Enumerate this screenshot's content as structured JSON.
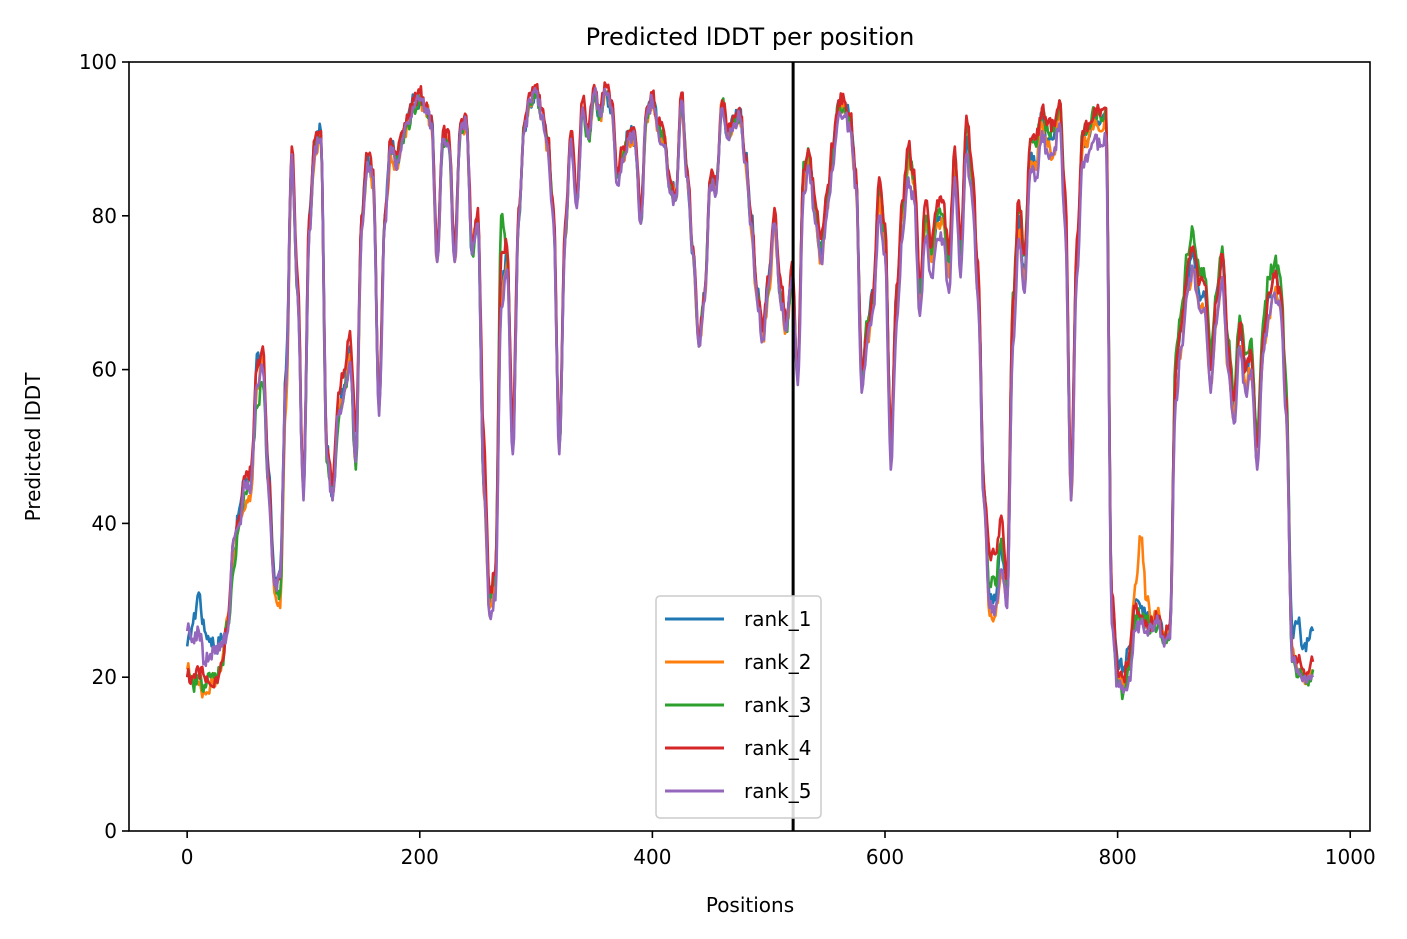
{
  "chart_data": {
    "type": "line",
    "title": "Predicted lDDT per position",
    "xlabel": "Positions",
    "ylabel": "Predicted lDDT",
    "xlim": [
      -50,
      1017
    ],
    "ylim": [
      0,
      100
    ],
    "xticks": [
      0,
      200,
      400,
      600,
      800,
      1000
    ],
    "yticks": [
      0,
      20,
      40,
      60,
      80,
      100
    ],
    "vline_x": 521,
    "legend_position": "lower center",
    "x_range": [
      0,
      968
    ],
    "anchors_x": [
      0,
      5,
      10,
      15,
      20,
      25,
      30,
      35,
      40,
      45,
      50,
      55,
      60,
      65,
      70,
      75,
      80,
      85,
      90,
      95,
      100,
      105,
      110,
      115,
      120,
      125,
      130,
      135,
      140,
      145,
      150,
      155,
      160,
      165,
      170,
      175,
      180,
      185,
      190,
      195,
      200,
      205,
      210,
      215,
      220,
      225,
      230,
      235,
      240,
      245,
      250,
      255,
      260,
      265,
      270,
      275,
      280,
      285,
      290,
      295,
      300,
      305,
      310,
      315,
      320,
      325,
      330,
      335,
      340,
      345,
      350,
      355,
      360,
      365,
      370,
      375,
      380,
      385,
      390,
      395,
      400,
      405,
      410,
      415,
      420,
      425,
      430,
      435,
      440,
      445,
      450,
      455,
      460,
      465,
      470,
      475,
      480,
      485,
      490,
      495,
      500,
      505,
      510,
      515,
      520,
      525,
      530,
      535,
      540,
      545,
      550,
      555,
      560,
      565,
      570,
      575,
      580,
      585,
      590,
      595,
      600,
      605,
      610,
      615,
      620,
      625,
      630,
      635,
      640,
      645,
      650,
      655,
      660,
      665,
      670,
      675,
      680,
      685,
      690,
      695,
      700,
      705,
      710,
      715,
      720,
      725,
      730,
      735,
      740,
      745,
      750,
      755,
      760,
      765,
      770,
      775,
      780,
      785,
      790,
      795,
      800,
      805,
      810,
      815,
      820,
      825,
      830,
      835,
      840,
      845,
      850,
      855,
      860,
      865,
      870,
      875,
      880,
      885,
      890,
      895,
      900,
      905,
      910,
      915,
      920,
      925,
      930,
      935,
      940,
      945,
      950,
      955,
      960,
      965,
      968
    ],
    "series": [
      {
        "name": "rank_1",
        "color": "#1f77b4",
        "values": [
          24,
          27,
          31,
          26,
          25,
          24,
          25,
          27,
          36,
          42,
          46,
          44,
          62,
          60,
          47,
          33,
          34,
          60,
          88,
          70,
          44,
          80,
          90,
          91,
          50,
          44,
          55,
          58,
          63,
          48,
          80,
          88,
          85,
          55,
          80,
          90,
          87,
          90,
          93,
          95,
          95,
          94,
          93,
          75,
          90,
          90,
          75,
          92,
          92,
          75,
          80,
          45,
          30,
          33,
          70,
          75,
          50,
          80,
          91,
          95,
          96,
          93,
          90,
          80,
          50,
          78,
          90,
          82,
          94,
          90,
          96,
          93,
          96,
          94,
          85,
          88,
          91,
          90,
          80,
          93,
          95,
          92,
          90,
          84,
          83,
          95,
          85,
          75,
          64,
          70,
          85,
          84,
          95,
          90,
          93,
          94,
          88,
          80,
          70,
          65,
          72,
          80,
          70,
          66,
          73,
          60,
          85,
          88,
          80,
          75,
          82,
          88,
          95,
          94,
          93,
          85,
          60,
          66,
          70,
          83,
          78,
          50,
          70,
          80,
          88,
          85,
          70,
          80,
          75,
          80,
          80,
          73,
          88,
          75,
          90,
          85,
          72,
          45,
          30,
          30,
          37,
          30,
          65,
          80,
          72,
          88,
          87,
          93,
          90,
          90,
          95,
          80,
          45,
          75,
          90,
          90,
          93,
          92,
          93,
          30,
          22,
          21,
          24,
          30,
          29,
          28,
          27,
          28,
          25,
          27,
          60,
          65,
          72,
          75,
          70,
          70,
          60,
          70,
          75,
          62,
          55,
          65,
          60,
          62,
          50,
          64,
          70,
          72,
          70,
          56,
          26,
          27,
          24,
          25,
          26
        ]
      },
      {
        "name": "rank_2",
        "color": "#ff7f0e",
        "values": [
          21,
          20,
          19,
          18,
          19,
          20,
          22,
          28,
          36,
          40,
          42,
          44,
          58,
          62,
          45,
          31,
          29,
          55,
          87,
          70,
          44,
          78,
          88,
          90,
          48,
          44,
          54,
          57,
          62,
          48,
          78,
          86,
          84,
          55,
          79,
          88,
          86,
          90,
          92,
          94,
          95,
          94,
          92,
          74,
          90,
          89,
          74,
          91,
          92,
          76,
          80,
          44,
          29,
          32,
          69,
          74,
          50,
          80,
          92,
          95,
          96,
          93,
          89,
          80,
          50,
          77,
          90,
          82,
          94,
          90,
          96,
          93,
          96,
          94,
          85,
          88,
          90,
          90,
          79,
          93,
          95,
          91,
          90,
          84,
          82,
          95,
          85,
          75,
          63,
          69,
          84,
          84,
          95,
          90,
          92,
          93,
          87,
          78,
          69,
          64,
          70,
          79,
          69,
          65,
          72,
          59,
          84,
          87,
          80,
          74,
          81,
          87,
          94,
          94,
          92,
          84,
          58,
          64,
          68,
          82,
          76,
          49,
          69,
          80,
          87,
          84,
          69,
          79,
          74,
          79,
          79,
          72,
          87,
          74,
          88,
          83,
          70,
          43,
          28,
          28,
          34,
          30,
          65,
          78,
          71,
          87,
          86,
          92,
          89,
          88,
          94,
          79,
          43,
          74,
          89,
          90,
          92,
          91,
          92,
          28,
          20,
          19,
          22,
          32,
          38,
          30,
          27,
          29,
          25,
          26,
          57,
          63,
          70,
          73,
          68,
          68,
          58,
          66,
          72,
          60,
          54,
          63,
          58,
          60,
          48,
          62,
          67,
          70,
          68,
          54,
          24,
          21,
          20,
          20,
          21
        ]
      },
      {
        "name": "rank_3",
        "color": "#2ca02c",
        "values": [
          20,
          19,
          20,
          19,
          20,
          20,
          22,
          27,
          34,
          40,
          44,
          46,
          55,
          58,
          45,
          32,
          31,
          58,
          88,
          70,
          44,
          78,
          89,
          90,
          48,
          43,
          53,
          57,
          61,
          47,
          79,
          87,
          85,
          55,
          80,
          89,
          87,
          90,
          92,
          94,
          95,
          94,
          92,
          75,
          90,
          89,
          75,
          91,
          92,
          75,
          80,
          45,
          31,
          33,
          80,
          75,
          50,
          79,
          92,
          95,
          96,
          93,
          90,
          80,
          50,
          77,
          90,
          82,
          94,
          90,
          96,
          93,
          96,
          94,
          85,
          88,
          91,
          90,
          79,
          93,
          95,
          92,
          90,
          84,
          82,
          95,
          86,
          75,
          63,
          70,
          84,
          84,
          95,
          90,
          92,
          93,
          88,
          79,
          70,
          65,
          71,
          80,
          70,
          65,
          72,
          59,
          87,
          88,
          81,
          76,
          82,
          88,
          94,
          94,
          93,
          85,
          59,
          66,
          70,
          84,
          78,
          50,
          69,
          81,
          88,
          85,
          70,
          80,
          75,
          80,
          80,
          74,
          88,
          75,
          92,
          85,
          72,
          44,
          32,
          32,
          38,
          32,
          70,
          82,
          75,
          90,
          89,
          94,
          91,
          91,
          95,
          82,
          44,
          76,
          91,
          92,
          94,
          93,
          94,
          29,
          19,
          18,
          21,
          28,
          28,
          27,
          26,
          27,
          25,
          26,
          62,
          68,
          75,
          78,
          73,
          72,
          62,
          70,
          76,
          64,
          57,
          67,
          62,
          64,
          51,
          66,
          72,
          74,
          72,
          58,
          22,
          20,
          20,
          20,
          21
        ]
      },
      {
        "name": "rank_4",
        "color": "#d62728",
        "values": [
          20,
          20,
          21,
          20,
          19,
          20,
          22,
          27,
          38,
          41,
          46,
          47,
          60,
          63,
          46,
          32,
          33,
          59,
          89,
          72,
          45,
          80,
          90,
          91,
          50,
          45,
          57,
          60,
          65,
          52,
          80,
          88,
          86,
          56,
          80,
          90,
          88,
          91,
          93,
          95,
          96,
          94,
          93,
          76,
          91,
          91,
          76,
          92,
          93,
          77,
          81,
          52,
          31,
          34,
          75,
          76,
          52,
          81,
          92,
          96,
          97,
          94,
          90,
          81,
          51,
          79,
          91,
          83,
          95,
          91,
          97,
          94,
          97,
          95,
          86,
          89,
          91,
          91,
          80,
          94,
          96,
          92,
          91,
          85,
          83,
          96,
          86,
          76,
          64,
          70,
          85,
          84,
          95,
          91,
          93,
          94,
          88,
          80,
          70,
          65,
          72,
          81,
          72,
          66,
          74,
          60,
          86,
          88,
          82,
          77,
          83,
          89,
          95,
          95,
          93,
          86,
          60,
          66,
          70,
          85,
          79,
          51,
          71,
          82,
          89,
          86,
          72,
          82,
          76,
          82,
          82,
          75,
          89,
          77,
          93,
          86,
          74,
          45,
          36,
          36,
          41,
          33,
          69,
          82,
          75,
          90,
          90,
          94,
          92,
          92,
          95,
          83,
          46,
          77,
          91,
          92,
          94,
          93,
          94,
          31,
          21,
          20,
          23,
          29,
          28,
          27,
          27,
          28,
          25,
          27,
          60,
          66,
          73,
          76,
          71,
          71,
          60,
          69,
          75,
          63,
          56,
          66,
          60,
          62,
          50,
          64,
          70,
          72,
          70,
          56,
          23,
          22,
          21,
          21,
          22
        ]
      },
      {
        "name": "rank_5",
        "color": "#9467bd",
        "values": [
          26,
          25,
          26,
          22,
          23,
          24,
          24,
          26,
          38,
          40,
          45,
          45,
          58,
          60,
          44,
          32,
          33,
          58,
          88,
          70,
          43,
          78,
          89,
          90,
          49,
          43,
          54,
          57,
          61,
          48,
          78,
          87,
          85,
          54,
          79,
          89,
          86,
          90,
          92,
          94,
          95,
          94,
          92,
          74,
          90,
          89,
          74,
          91,
          92,
          75,
          79,
          45,
          28,
          30,
          68,
          73,
          49,
          79,
          91,
          95,
          96,
          93,
          89,
          79,
          49,
          77,
          90,
          81,
          94,
          90,
          96,
          93,
          96,
          94,
          84,
          87,
          90,
          90,
          79,
          93,
          95,
          91,
          89,
          83,
          82,
          95,
          85,
          75,
          63,
          69,
          84,
          83,
          94,
          90,
          92,
          93,
          87,
          79,
          69,
          64,
          71,
          79,
          69,
          65,
          72,
          58,
          83,
          86,
          79,
          74,
          80,
          86,
          93,
          93,
          91,
          84,
          57,
          64,
          68,
          80,
          75,
          47,
          66,
          77,
          85,
          82,
          67,
          77,
          72,
          77,
          77,
          70,
          85,
          72,
          88,
          82,
          69,
          43,
          29,
          29,
          34,
          29,
          63,
          77,
          70,
          86,
          85,
          91,
          88,
          88,
          92,
          78,
          43,
          72,
          87,
          88,
          90,
          89,
          90,
          27,
          19,
          18,
          20,
          26,
          27,
          26,
          26,
          27,
          24,
          25,
          56,
          63,
          70,
          73,
          68,
          68,
          57,
          66,
          72,
          60,
          53,
          63,
          57,
          60,
          47,
          62,
          67,
          70,
          68,
          54,
          22,
          21,
          20,
          20,
          20
        ]
      }
    ]
  }
}
